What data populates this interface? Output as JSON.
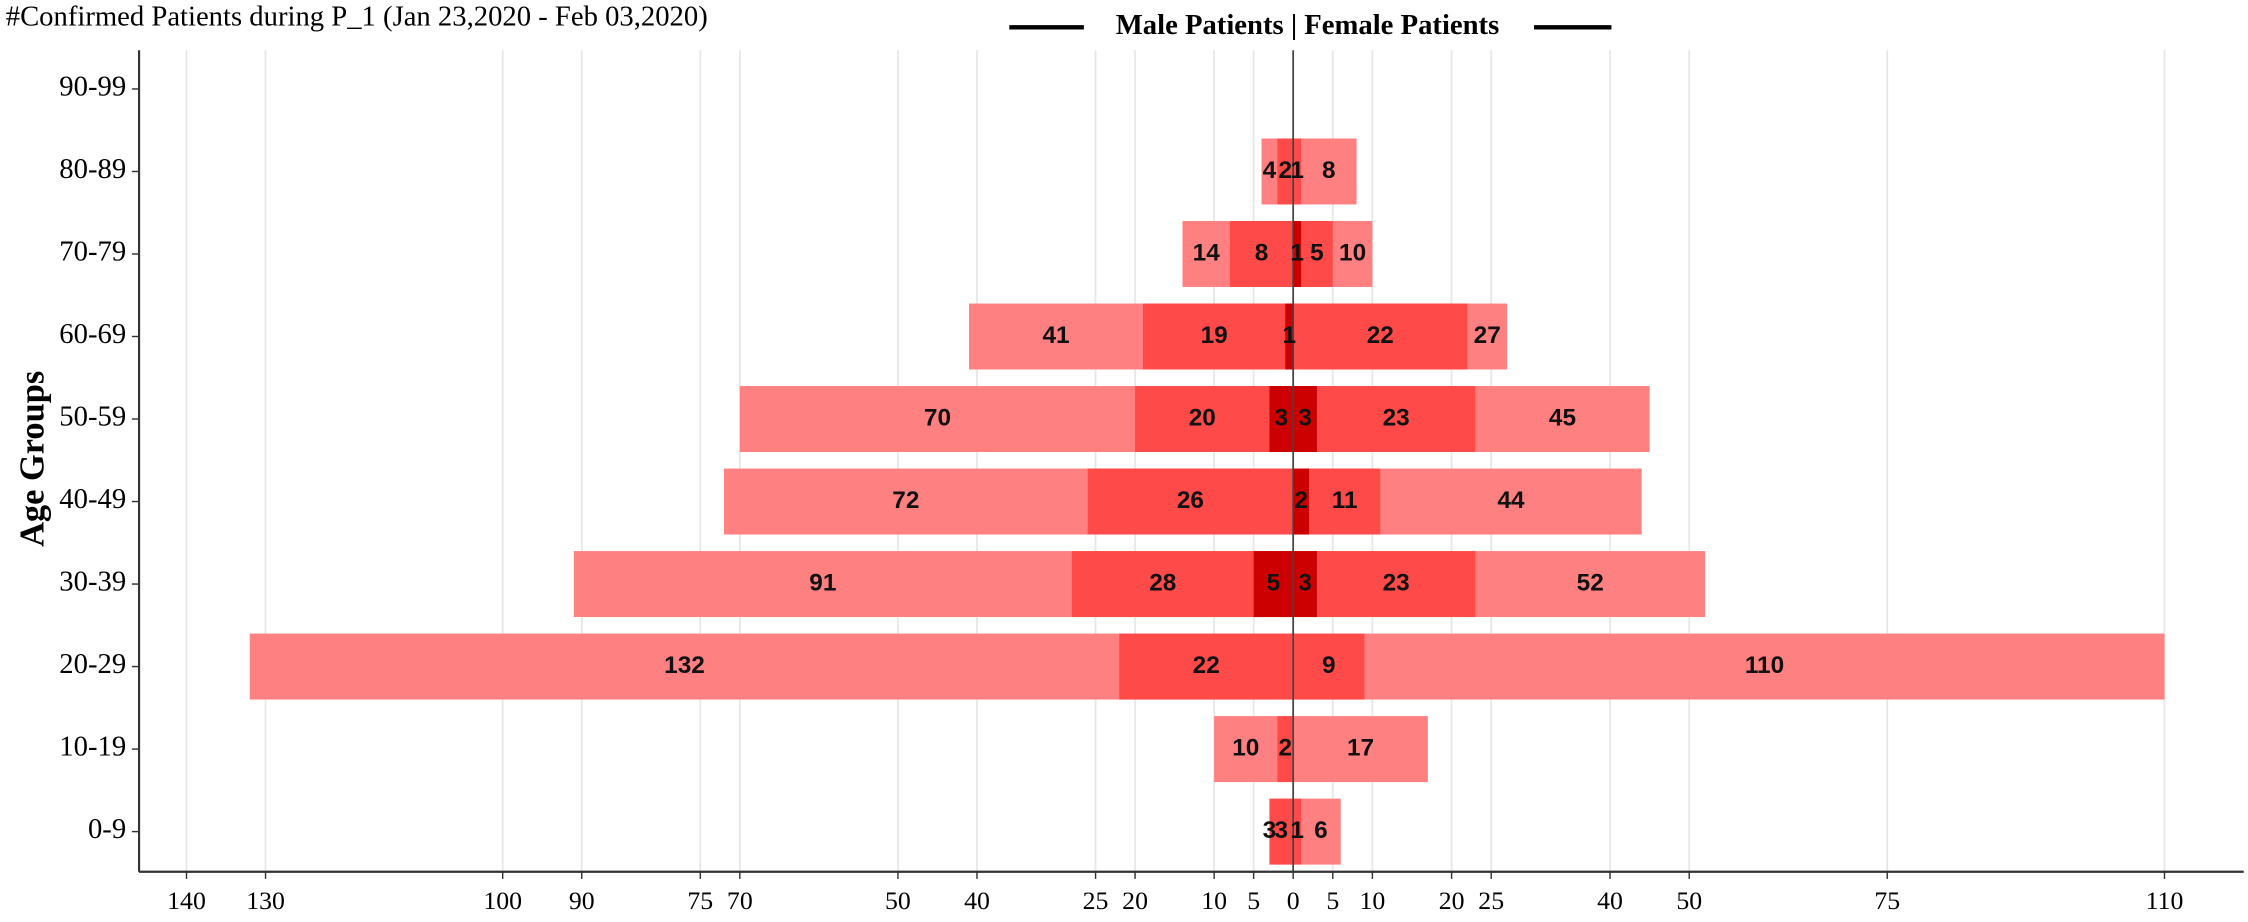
{
  "chart_data": {
    "type": "pyramid",
    "title": "#Confirmed Patients during P_1 (Jan 23,2020 - Feb 03,2020)",
    "legend_title": "Male Patients | Female Patients",
    "y_label": "Age Groups",
    "categories": [
      "0-9",
      "10-19",
      "20-29",
      "30-39",
      "40-49",
      "50-59",
      "60-69",
      "70-79",
      "80-89",
      "90-99"
    ],
    "male_xlim": [
      0,
      146
    ],
    "female_xlim": [
      0,
      120
    ],
    "male_xticks": [
      0,
      5,
      10,
      20,
      25,
      40,
      50,
      70,
      75,
      90,
      100,
      130,
      140
    ],
    "female_xticks": [
      5,
      10,
      20,
      25,
      40,
      50,
      75,
      110
    ],
    "grid": true,
    "male_series": [
      {
        "color": "#ff8080",
        "values": [
          3,
          10,
          132,
          91,
          72,
          70,
          41,
          14,
          4,
          null
        ]
      },
      {
        "color": "#ff4a4a",
        "values": [
          3,
          2,
          22,
          28,
          26,
          20,
          19,
          8,
          2,
          null
        ]
      },
      {
        "color": "#cc0000",
        "values": [
          null,
          null,
          null,
          5,
          null,
          3,
          1,
          null,
          null,
          null
        ]
      }
    ],
    "female_series": [
      {
        "color": "#ff8080",
        "values": [
          6,
          17,
          110,
          52,
          44,
          45,
          27,
          10,
          8,
          null
        ]
      },
      {
        "color": "#ff4a4a",
        "values": [
          1,
          null,
          9,
          23,
          11,
          23,
          22,
          5,
          1,
          null
        ]
      },
      {
        "color": "#cc0000",
        "values": [
          null,
          null,
          null,
          3,
          2,
          3,
          null,
          1,
          null,
          null
        ]
      }
    ]
  }
}
